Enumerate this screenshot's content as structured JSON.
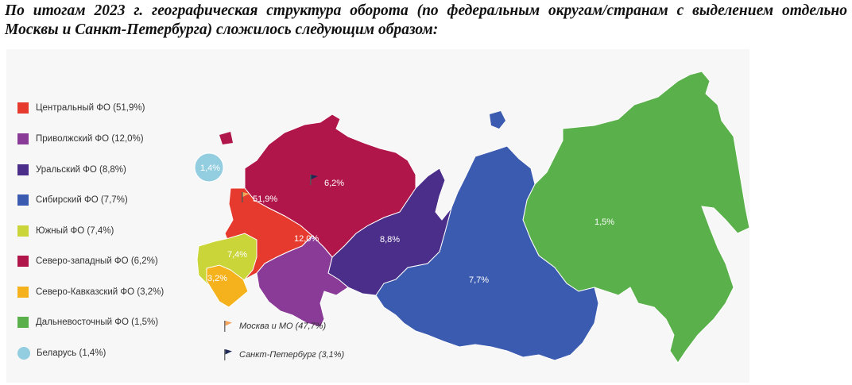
{
  "heading": "По итогам 2023 г. географическая структура оборота (по федеральным округам/странам с выделением отдельно Москвы и Санкт-Петербурга) сложилось следующим образом:",
  "legend": [
    {
      "label": "Центральный ФО (51,9%)",
      "color": "#e63a2e",
      "shape": "square"
    },
    {
      "label": "Приволжский ФО (12,0%)",
      "color": "#8a3a97",
      "shape": "square"
    },
    {
      "label": "Уральский ФО (8,8%)",
      "color": "#4a2e8a",
      "shape": "square"
    },
    {
      "label": "Сибирский ФО (7,7%)",
      "color": "#3a5bb0",
      "shape": "square"
    },
    {
      "label": "Южный ФО (7,4%)",
      "color": "#cad53a",
      "shape": "square"
    },
    {
      "label": "Северо-западный ФО (6,2%)",
      "color": "#b0164a",
      "shape": "square"
    },
    {
      "label": "Северо-Кавказский ФО (3,2%)",
      "color": "#f5b21d",
      "shape": "square"
    },
    {
      "label": "Дальневосточный ФО (1,5%)",
      "color": "#5ab04a",
      "shape": "square"
    },
    {
      "label": "Беларусь (1,4%)",
      "color": "#92cde0",
      "shape": "circle"
    }
  ],
  "flags": [
    {
      "label": "Москва и МО (47,7%)",
      "color": "#f4a35a",
      "icon": "flag-icon"
    },
    {
      "label": "Санкт-Петербург (3,1%)",
      "color": "#1e2a55",
      "icon": "flag-icon"
    }
  ],
  "regions": {
    "central": {
      "value": "51,9%",
      "color": "#e63a2e"
    },
    "volga": {
      "value": "12,0%",
      "color": "#8a3a97"
    },
    "ural": {
      "value": "8,8%",
      "color": "#4a2e8a"
    },
    "siberia": {
      "value": "7,7%",
      "color": "#3a5bb0"
    },
    "south": {
      "value": "7,4%",
      "color": "#cad53a"
    },
    "northwest": {
      "value": "6,2%",
      "color": "#b0164a"
    },
    "caucasus": {
      "value": "3,2%",
      "color": "#f5b21d"
    },
    "fareast": {
      "value": "1,5%",
      "color": "#5ab04a"
    },
    "belarus": {
      "value": "1,4%",
      "color": "#92cde0"
    }
  }
}
